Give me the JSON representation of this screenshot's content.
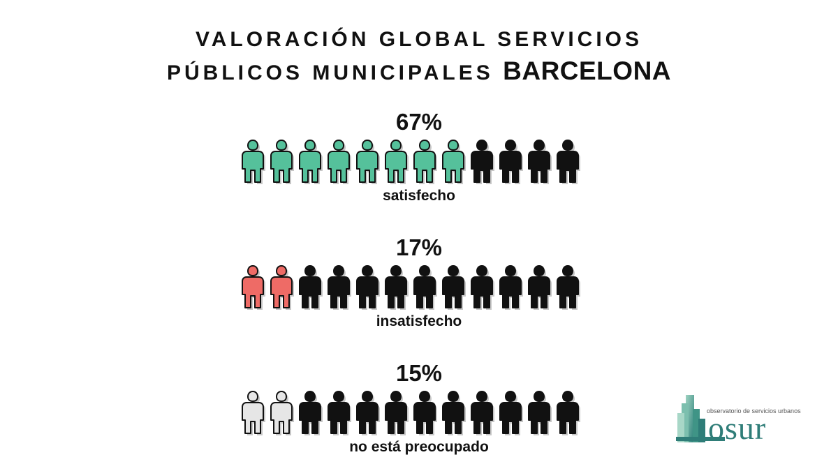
{
  "title": {
    "line1": "VALORACIÓN GLOBAL SERVICIOS",
    "line2": "PÚBLICOS MUNICIPALES",
    "line2_strong": "BARCELONA"
  },
  "colors": {
    "satisfied": "#55c19b",
    "dissatisfied": "#ee6b66",
    "unconcerned": "#e6e6e6",
    "rest": "#111111"
  },
  "chart_data": {
    "type": "pictogram",
    "icons_per_row": 12,
    "rows": [
      {
        "percent_label": "67%",
        "value": 67,
        "label": "satisfecho",
        "highlighted_icons": 8,
        "color": "#55c19b",
        "icon": "person-icon"
      },
      {
        "percent_label": "17%",
        "value": 17,
        "label": "insatisfecho",
        "highlighted_icons": 2,
        "color": "#ee6b66",
        "icon": "person-icon"
      },
      {
        "percent_label": "15%",
        "value": 15,
        "label": "no está preocupado",
        "highlighted_icons": 2,
        "color": "#e6e6e6",
        "icon": "person-icon"
      }
    ]
  },
  "logo": {
    "tagline": "observatorio de servicios urbanos",
    "wordmark": "osur",
    "icon": "stacked-buildings-logo"
  }
}
